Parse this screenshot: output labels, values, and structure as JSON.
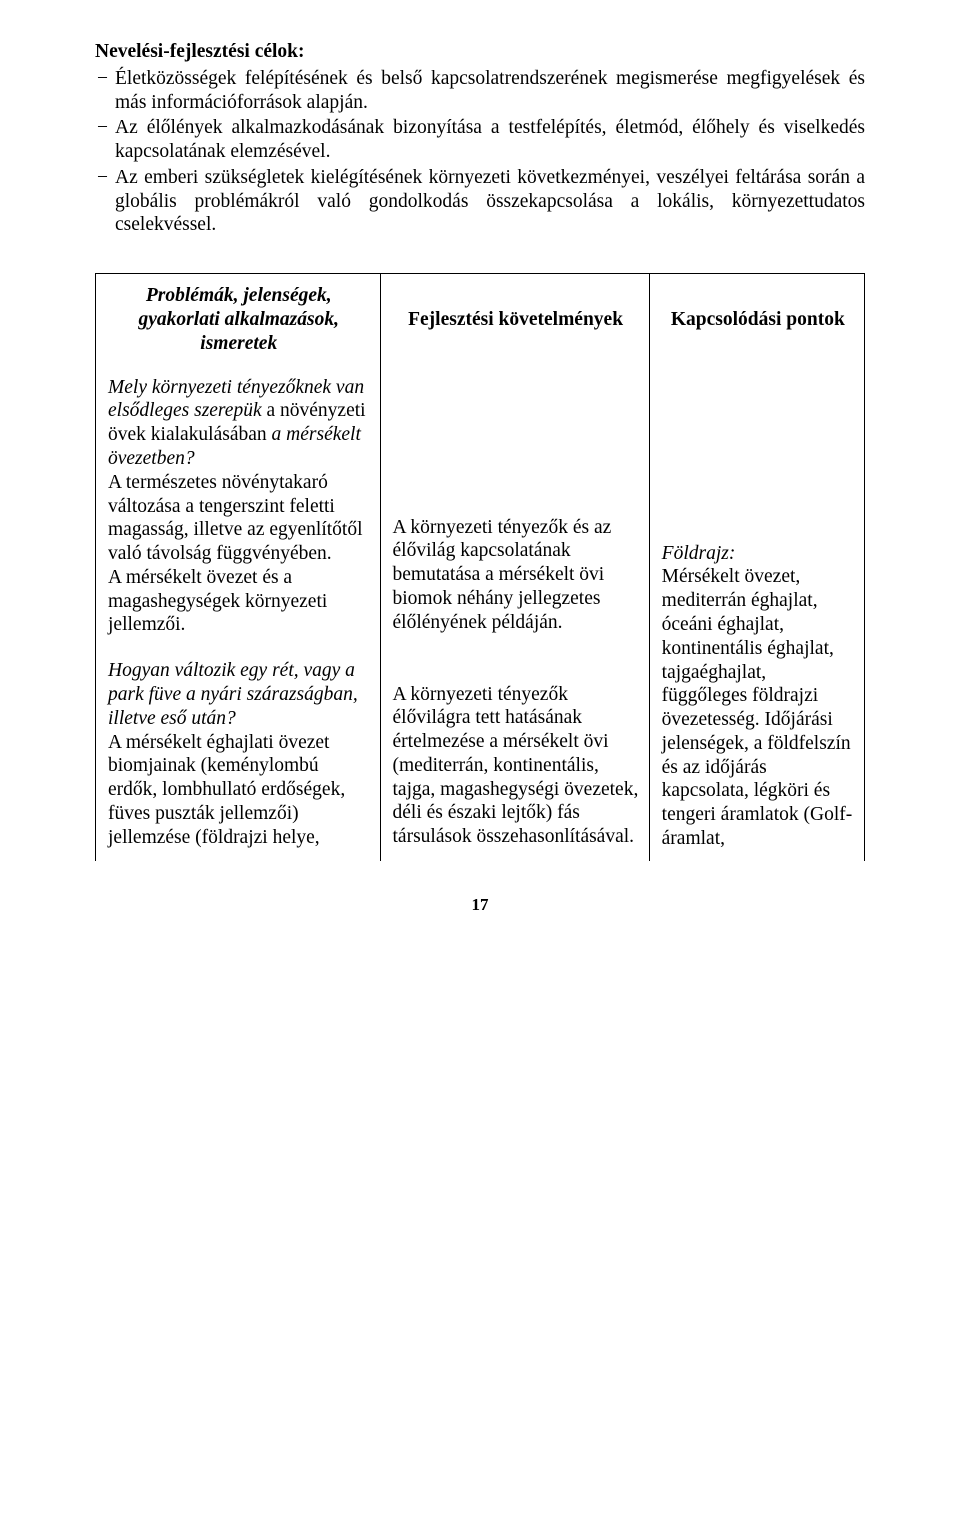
{
  "heading": "Nevelési-fejlesztési célok:",
  "bullets": [
    "Életközösségek felépítésének és belső kapcsolatrendszerének megismerése megfigyelések és más információforrások alapján.",
    "Az élőlények alkalmazkodásának bizonyítása a testfelépítés, életmód, élőhely és viselkedés kapcsolatának elemzésével.",
    "Az emberi szükségletek kielégítésének környezeti következményei, veszélyei feltárása során a globális problémákról való gondolkodás összekapcsolása a lokális, környezettudatos cselekvéssel."
  ],
  "table": {
    "headers": {
      "col1": "Problémák, jelenségek, gyakorlati alkalmazások, ismeretek",
      "col2": "Fejlesztési követelmények",
      "col3": "Kapcsolódási pontok"
    },
    "col1": {
      "p1_italic": "Mely környezeti tényezőknek van elsődleges szerepük",
      "p1_rest_a": " a növényzeti övek kialakulásában ",
      "p1_italic2": "a mérsékelt övezetben?",
      "p2": "A természetes növénytakaró változása a tengerszint feletti magasság, illetve az egyenlítőtől való távolság függvényében.",
      "p3": "A mérsékelt övezet és a magashegységek környezeti jellemzői.",
      "p4_italic": "Hogyan változik egy rét, vagy a park füve a nyári szárazságban, illetve eső után?",
      "p5": "A mérsékelt éghajlati övezet biomjainak (keménylombú erdők, lombhullató erdőségek, füves puszták jellemzői) jellemzése (földrajzi helye,"
    },
    "col2": {
      "p1": "A környezeti tényezők és az élővilág kapcsolatának bemutatása a mérsékelt övi biomok néhány jellegzetes élőlényének példáján.",
      "p2": "A környezeti tényezők élővilágra tett hatásának értelmezése a mérsékelt övi (mediterrán, kontinentális, tajga, magashegységi övezetek, déli és északi lejtők) fás társulások összehasonlításával."
    },
    "col3": {
      "label_italic": "Földrajz:",
      "body": "Mérsékelt övezet, mediterrán éghajlat, óceáni éghajlat, kontinentális éghajlat, tajgaéghajlat, függőleges földrajzi övezetesség. Időjárási jelenségek, a földfelszín és az időjárás kapcsolata, légköri és tengeri áramlatok (Golf-áramlat,"
    }
  },
  "pageNumber": "17"
}
